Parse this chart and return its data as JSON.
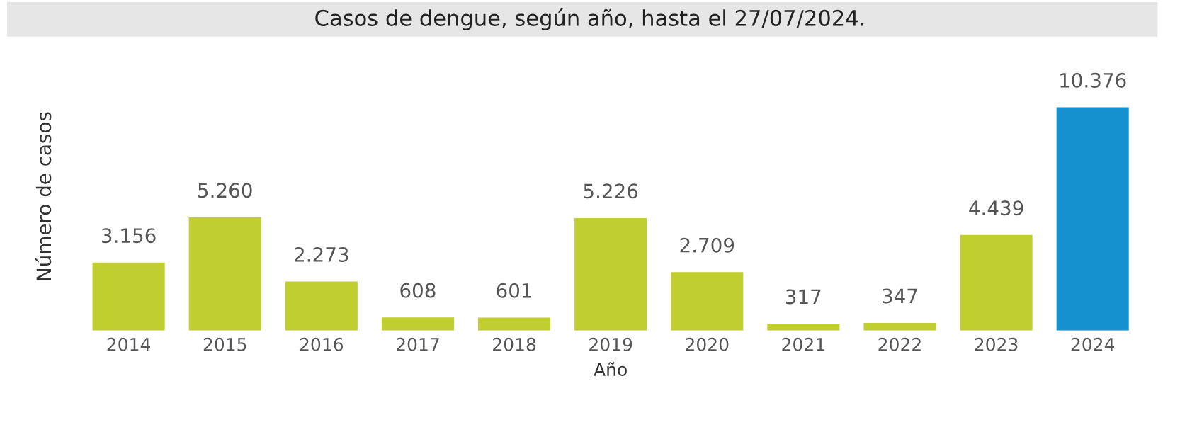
{
  "chart_data": {
    "type": "bar",
    "title": "Casos de dengue, según año, hasta el 27/07/2024.",
    "xlabel": "Año",
    "ylabel": "Número de casos",
    "categories": [
      "2014",
      "2015",
      "2016",
      "2017",
      "2018",
      "2019",
      "2020",
      "2021",
      "2022",
      "2023",
      "2024"
    ],
    "values": [
      3156,
      5260,
      2273,
      608,
      601,
      5226,
      2709,
      317,
      347,
      4439,
      10376
    ],
    "value_labels": [
      "3.156",
      "5.260",
      "2.273",
      "608",
      "601",
      "5.226",
      "2.709",
      "317",
      "347",
      "4.439",
      "10.376"
    ],
    "colors": [
      "#c0cf2f",
      "#c0cf2f",
      "#c0cf2f",
      "#c0cf2f",
      "#c0cf2f",
      "#c0cf2f",
      "#c0cf2f",
      "#c0cf2f",
      "#c0cf2f",
      "#c0cf2f",
      "#1591d0"
    ],
    "tick_labels": "x"
  }
}
